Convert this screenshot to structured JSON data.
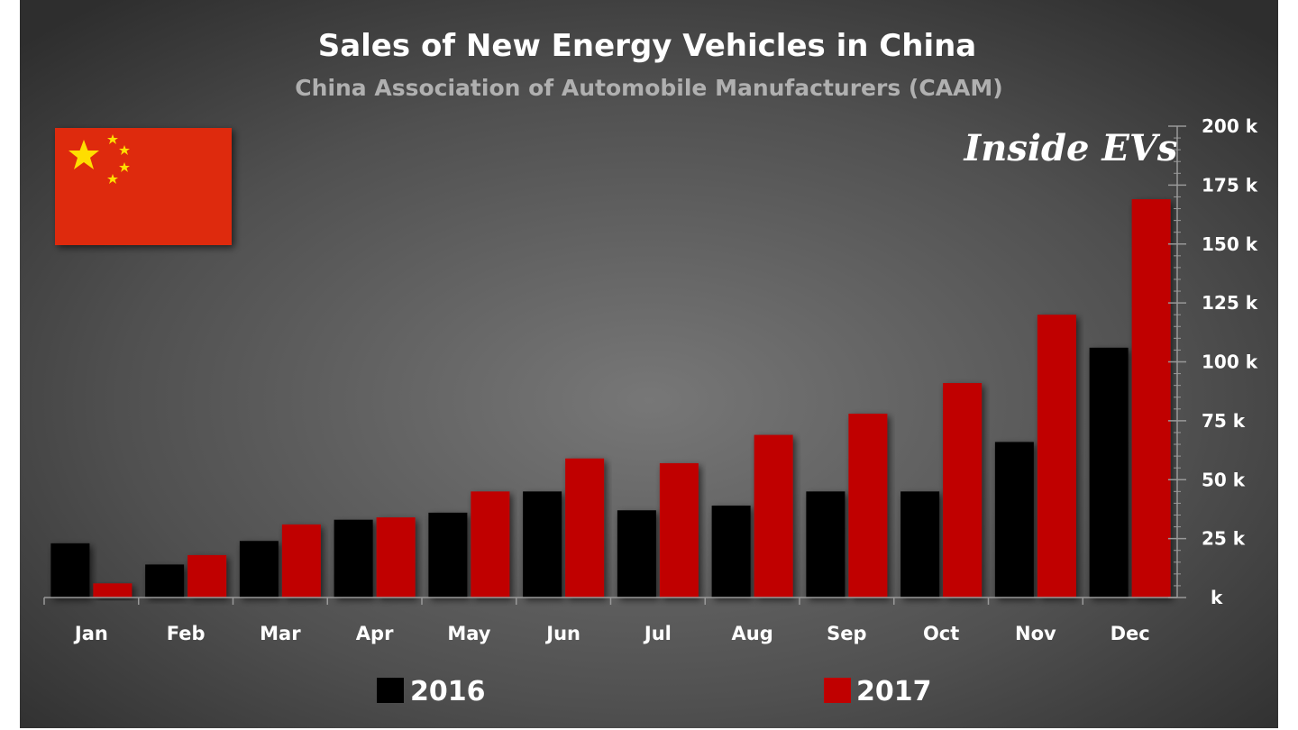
{
  "chart_data": {
    "type": "bar",
    "title": "Sales of New Energy Vehicles in China",
    "subtitle": "China Association of Automobile Manufacturers (CAAM)",
    "logo_text": "Inside EVs",
    "categories": [
      "Jan",
      "Feb",
      "Mar",
      "Apr",
      "May",
      "Jun",
      "Jul",
      "Aug",
      "Sep",
      "Oct",
      "Nov",
      "Dec"
    ],
    "series": [
      {
        "name": "2016",
        "color": "#000000",
        "values": [
          23,
          14,
          24,
          33,
          36,
          45,
          37,
          39,
          45,
          45,
          66,
          106
        ]
      },
      {
        "name": "2017",
        "color": "#c00000",
        "values": [
          6,
          18,
          31,
          34,
          45,
          59,
          57,
          69,
          78,
          91,
          120,
          169
        ]
      }
    ],
    "ylim": [
      0,
      200
    ],
    "yticks": [
      0,
      25,
      50,
      75,
      100,
      125,
      150,
      175,
      200
    ],
    "ytick_labels": [
      "k",
      "25 k",
      "50 k",
      "75 k",
      "100 k",
      "125 k",
      "150 k",
      "175 k",
      "200 k"
    ],
    "y_axis_side": "right",
    "grid": false,
    "legend_placement": "bottom",
    "flag": "china-flag",
    "colors": {
      "background": "#4a4a4a",
      "flag_red": "#de2910",
      "flag_star": "#ffde00"
    }
  }
}
